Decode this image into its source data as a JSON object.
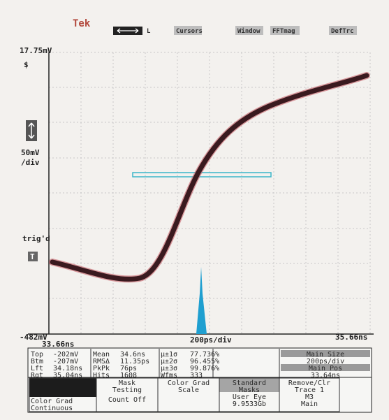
{
  "menu": {
    "logo": "Tek",
    "items": [
      "L",
      "Cursors",
      "Window",
      "FFTmag",
      "DefTrc"
    ]
  },
  "scale": {
    "top": "17.75mV",
    "volts_per_div": [
      "50mV",
      "/div"
    ],
    "trigger": [
      "trig'd",
      "T"
    ],
    "bottom": "-482mV"
  },
  "time_axis": {
    "start": "33.66ns",
    "per_div": "200ps/div",
    "end": "35.66ns"
  },
  "measurements": {
    "rows": [
      [
        "Top",
        "-202mV",
        "Mean",
        "34.6ns",
        "μ±1σ",
        "77.736%",
        "Main Size"
      ],
      [
        "Btm",
        "-207mV",
        "RMSΔ",
        "11.35ps",
        "μ±2σ",
        "96.455%",
        "200ps/div"
      ],
      [
        "Lft",
        "34.18ns",
        "PkPk",
        "76ps",
        "μ±3σ",
        "99.876%",
        "Main Pos"
      ],
      [
        "Rgt",
        "35.04ns",
        "Hits",
        "1608",
        "Wfms",
        "333",
        "33.64ns"
      ]
    ]
  },
  "buttons": [
    [
      "Color Grad",
      "Continuous"
    ],
    [
      "Mask",
      "Testing",
      "Count Off"
    ],
    [
      "Color Grad",
      "Scale"
    ],
    [
      "Standard",
      "Masks",
      "User Eye",
      "9.9533Gb"
    ],
    [
      "Remove/Clr",
      "Trace 1",
      "M3",
      "Main"
    ]
  ]
}
